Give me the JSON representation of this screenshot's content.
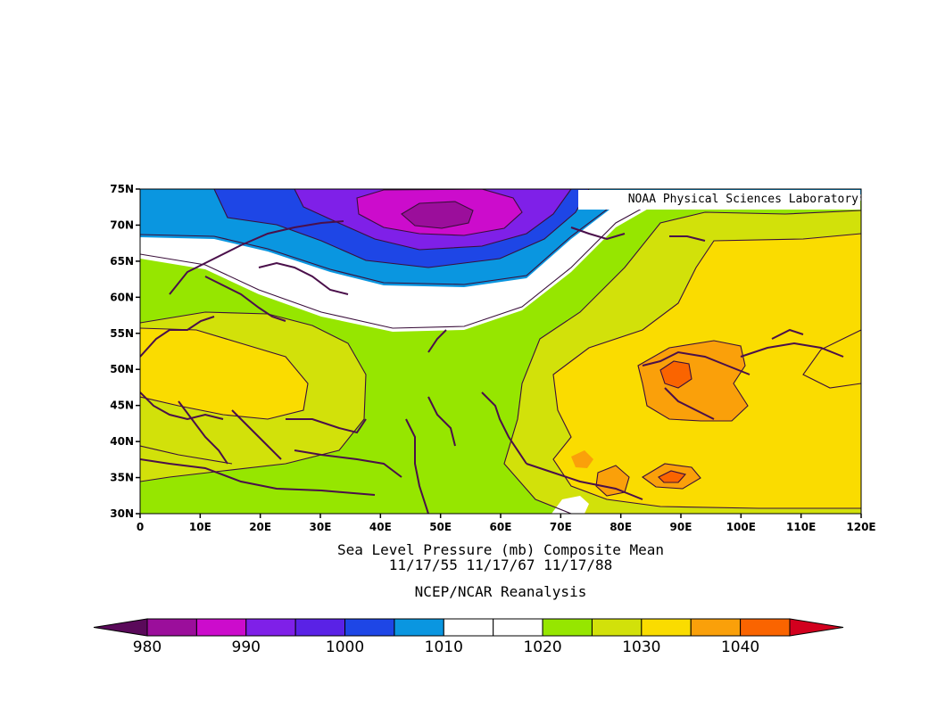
{
  "map": {
    "title_line1": "Sea Level Pressure (mb) Composite Mean",
    "title_line2": "11/17/55 11/17/67 11/17/88",
    "source": "NCEP/NCAR Reanalysis",
    "credit": "NOAA Physical Sciences Laboratory",
    "lat_labels": [
      "75N",
      "70N",
      "65N",
      "60N",
      "55N",
      "50N",
      "45N",
      "40N",
      "35N",
      "30N"
    ],
    "lon_labels": [
      "0",
      "10E",
      "20E",
      "30E",
      "40E",
      "50E",
      "60E",
      "70E",
      "80E",
      "90E",
      "100E",
      "110E",
      "120E"
    ],
    "extent": {
      "lon_min": 0,
      "lon_max": 120,
      "lat_min": 30,
      "lat_max": 75
    }
  },
  "colorbar": {
    "labels": [
      "980",
      "990",
      "1000",
      "1010",
      "1020",
      "1030",
      "1040"
    ],
    "colors": [
      "#5a0a5a",
      "#9b0e9b",
      "#cc0ccc",
      "#7f20e8",
      "#5a22e6",
      "#1e46e6",
      "#0a96e0",
      "#ffffff",
      "#ffffff",
      "#96e600",
      "#d2e10a",
      "#fadc00",
      "#faa00a",
      "#fa6400",
      "#d2001e"
    ]
  },
  "colors": {
    "coast": "#4a0f4a",
    "contour": "#3a0f3a"
  }
}
